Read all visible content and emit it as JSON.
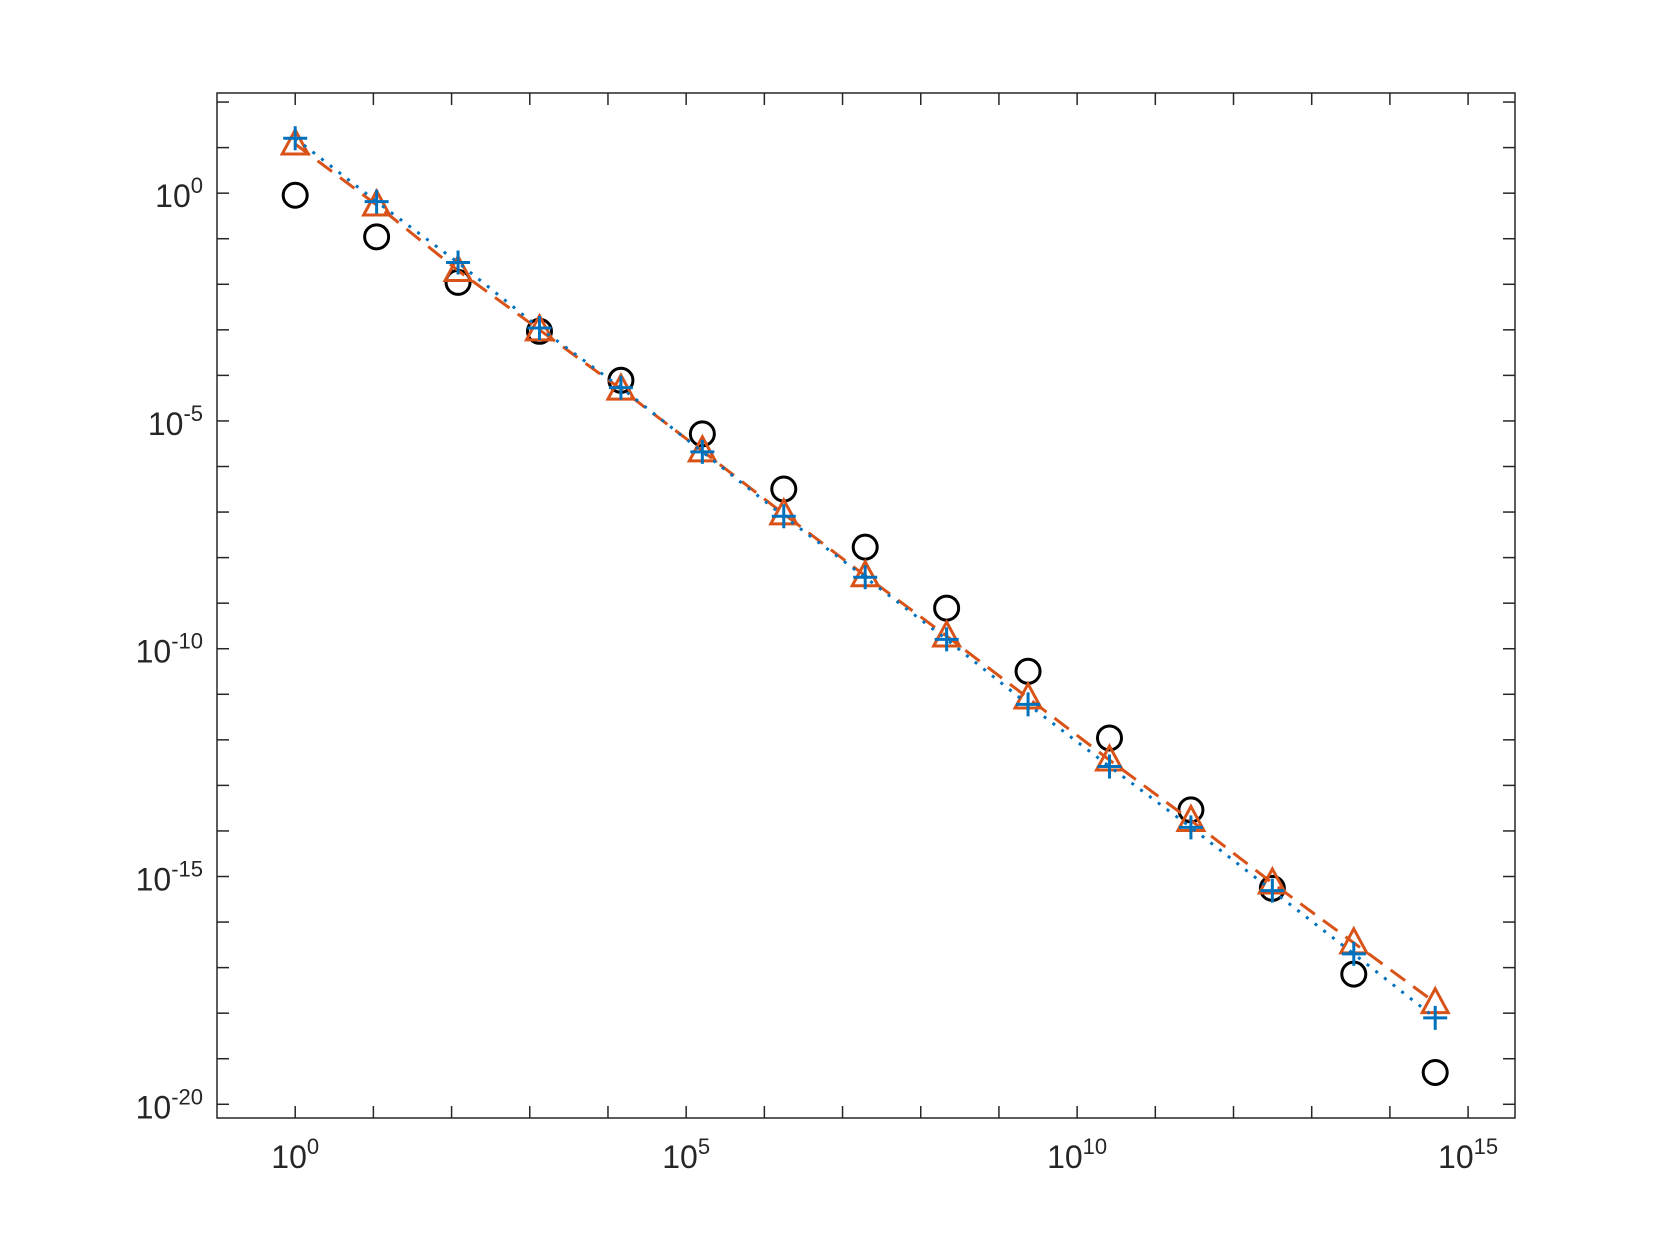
{
  "chart_data": {
    "type": "line",
    "x": [
      1,
      11,
      121,
      1331,
      14641,
      161051,
      1771561,
      19487171,
      214358881,
      2357947691,
      25937424601,
      285311670611,
      3138428376721,
      34522712143931,
      379749833583241
    ],
    "series": [
      {
        "color": "#000000",
        "marker": "circle",
        "linestyle": "none",
        "values": [
          0.9,
          0.11,
          0.011,
          0.00093,
          7.8e-05,
          5.2e-06,
          3.2e-07,
          1.7e-08,
          7.8e-10,
          3.2e-11,
          1.1e-12,
          2.9e-14,
          5.5e-16,
          7.2e-18,
          5e-20
        ]
      },
      {
        "color": "#D95319",
        "marker": "triangle",
        "linestyle": "dashed",
        "values": [
          12,
          0.55,
          0.02,
          0.001,
          5e-05,
          2.2e-06,
          9.1e-08,
          4e-09,
          1.9e-10,
          8.3e-12,
          3.6e-13,
          1.7e-14,
          7.2e-16,
          3.5e-17,
          1.7e-18
        ]
      },
      {
        "color": "#0072BD",
        "marker": "plus",
        "linestyle": "dotted",
        "values": [
          16,
          0.65,
          0.03,
          0.0011,
          5.4e-05,
          2.1e-06,
          8.1e-08,
          3.7e-09,
          1.6e-10,
          6e-12,
          2.6e-13,
          1.2e-14,
          4.9e-16,
          2e-17,
          7.9e-19
        ]
      }
    ],
    "xscale": "log",
    "yscale": "log",
    "xlim": [
      0.1,
      3980000000000000.0
    ],
    "ylim": [
      5e-21,
      158
    ],
    "xticks": [
      {
        "value": 1,
        "label": "10^0"
      },
      {
        "value": 100000.0,
        "label": "10^5"
      },
      {
        "value": 10000000000.0,
        "label": "10^10"
      },
      {
        "value": 1000000000000000.0,
        "label": "10^15"
      }
    ],
    "yticks": [
      {
        "value": 1e-20,
        "label": "10^-20"
      },
      {
        "value": 1e-15,
        "label": "10^-15"
      },
      {
        "value": 1e-10,
        "label": "10^-10"
      },
      {
        "value": 1e-05,
        "label": "10^-5"
      },
      {
        "value": 1,
        "label": "10^0"
      }
    ],
    "xminorticks": [
      10.0,
      100.0,
      1000.0,
      10000.0,
      1000000.0,
      10000000.0,
      100000000.0,
      1000000000.0,
      100000000000.0,
      1000000000000.0,
      10000000000000.0,
      100000000000000.0
    ],
    "yminorticks": [
      1e-19,
      1e-18,
      1e-17,
      1e-16,
      1e-14,
      1e-13,
      1e-12,
      1e-11,
      1e-09,
      1e-08,
      1e-07,
      1e-06,
      0.0001,
      0.001,
      0.01,
      0.1,
      10.0,
      100.0
    ],
    "grid": false
  }
}
